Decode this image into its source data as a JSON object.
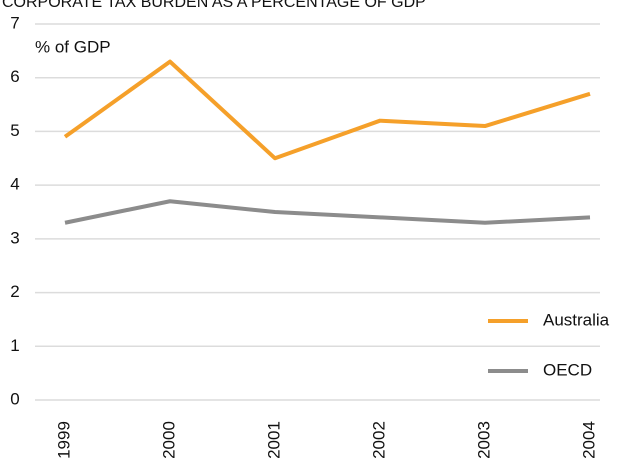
{
  "chart_data": {
    "type": "line",
    "title": "CORPORATE TAX BURDEN AS A PERCENTAGE OF GDP",
    "y_label": "% of GDP",
    "categories": [
      "1999",
      "2000",
      "2001",
      "2002",
      "2003",
      "2004"
    ],
    "series": [
      {
        "name": "Australia",
        "color": "#f5a02a",
        "values": [
          4.9,
          6.3,
          4.5,
          5.2,
          5.1,
          5.7
        ]
      },
      {
        "name": "OECD",
        "color": "#8c8c8c",
        "values": [
          3.3,
          3.7,
          3.5,
          3.4,
          3.3,
          3.4
        ]
      }
    ],
    "ylim": [
      0,
      7
    ],
    "yticks": [
      0,
      1,
      2,
      3,
      4,
      5,
      6,
      7
    ],
    "grid": true,
    "legend": "lower right"
  }
}
